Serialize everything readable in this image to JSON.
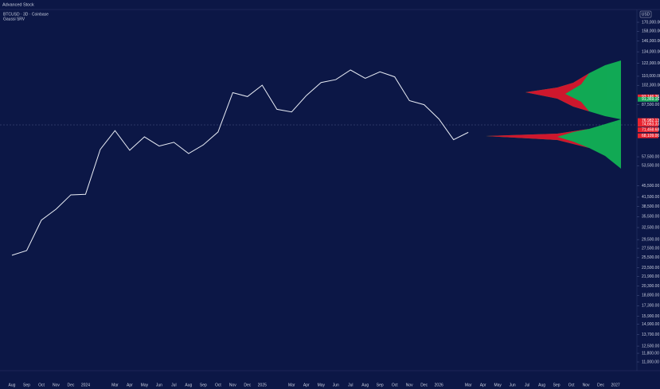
{
  "header": {
    "title": "Advanced Stock"
  },
  "chart_data": {
    "type": "line",
    "title": "BTCUSD · 3D · Coinbase",
    "subtitle": "Gaussi SRV",
    "y_axis_label": "USD",
    "log_scale": true,
    "categories": [
      "Aug",
      "Sep",
      "Oct",
      "Nov",
      "Dec",
      "2024",
      null,
      "Mar",
      "Apr",
      "May",
      "Jun",
      "Jul",
      "Aug",
      "Sep",
      "Oct",
      "Nov",
      "Dec",
      "2025",
      null,
      "Mar",
      "Apr",
      "May",
      "Jun",
      "Jul",
      "Aug",
      "Sep",
      "Oct",
      "Nov",
      "Dec",
      "2026",
      null,
      "Mar",
      "Apr",
      "May",
      "Jun",
      "Jul",
      "Aug",
      "Sep",
      "Oct",
      "Nov",
      "Dec",
      "2027"
    ],
    "series": [
      {
        "name": "BTCUSD",
        "color": "#e8ecf5",
        "values": [
          26000,
          27000,
          34500,
          37700,
          42300,
          42500,
          61000,
          71000,
          60600,
          67500,
          62700,
          64600,
          59000,
          63300,
          70200,
          96400,
          93400,
          102400,
          84300,
          82500,
          94200,
          104600,
          107100,
          115700,
          108200,
          114000,
          109500,
          90400,
          87500,
          78000,
          66000,
          70000,
          null,
          null,
          null,
          null,
          null,
          null,
          null,
          null,
          null,
          null
        ]
      }
    ],
    "ylim": [
      11000,
      170000
    ],
    "yticks": [
      {
        "value": 170000,
        "label": "170,000.00"
      },
      {
        "value": 158000,
        "label": "158,000.00"
      },
      {
        "value": 146000,
        "label": "146,000.00"
      },
      {
        "value": 134000,
        "label": "134,000.00"
      },
      {
        "value": 122000,
        "label": "122,000.00"
      },
      {
        "value": 110000,
        "label": "110,000.00"
      },
      {
        "value": 102300,
        "label": "102,300.00"
      },
      {
        "value": 87500,
        "label": "87,500.00"
      },
      {
        "value": 57500,
        "label": "57,500.00"
      },
      {
        "value": 53500,
        "label": "53,500.00"
      },
      {
        "value": 45500,
        "label": "45,500.00"
      },
      {
        "value": 41500,
        "label": "41,500.00"
      },
      {
        "value": 38500,
        "label": "38,500.00"
      },
      {
        "value": 35500,
        "label": "35,500.00"
      },
      {
        "value": 32500,
        "label": "32,500.00"
      },
      {
        "value": 29500,
        "label": "29,500.00"
      },
      {
        "value": 27500,
        "label": "27,500.00"
      },
      {
        "value": 25500,
        "label": "25,500.00"
      },
      {
        "value": 23500,
        "label": "23,500.00"
      },
      {
        "value": 21900,
        "label": "21,900.00"
      },
      {
        "value": 20300,
        "label": "20,300.00"
      },
      {
        "value": 18800,
        "label": "18,800.00"
      },
      {
        "value": 17300,
        "label": "17,300.00"
      },
      {
        "value": 15900,
        "label": "15,900.00"
      },
      {
        "value": 14900,
        "label": "14,900.00"
      },
      {
        "value": 13700,
        "label": "13,700.00"
      },
      {
        "value": 12500,
        "label": "12,500.00"
      },
      {
        "value": 11800,
        "label": "11,800.00"
      },
      {
        "value": 11000,
        "label": "11,000.00"
      }
    ],
    "price_tags": [
      {
        "value": 93146.36,
        "label": "93,146.36",
        "color": "#e8232f"
      },
      {
        "value": 91369.16,
        "label": "91,369.16",
        "color": "#1aa35a"
      },
      {
        "value": 76982.13,
        "label": "76,982.13",
        "color": "#e8232f"
      },
      {
        "value": 74663.33,
        "label": "74,663.33",
        "color": "#e8232f"
      },
      {
        "value": 71458.68,
        "label": "71,458.68",
        "color": "#e8232f"
      },
      {
        "value": 68109.0,
        "label": "68,109.00",
        "color": "#e8232f"
      }
    ]
  }
}
